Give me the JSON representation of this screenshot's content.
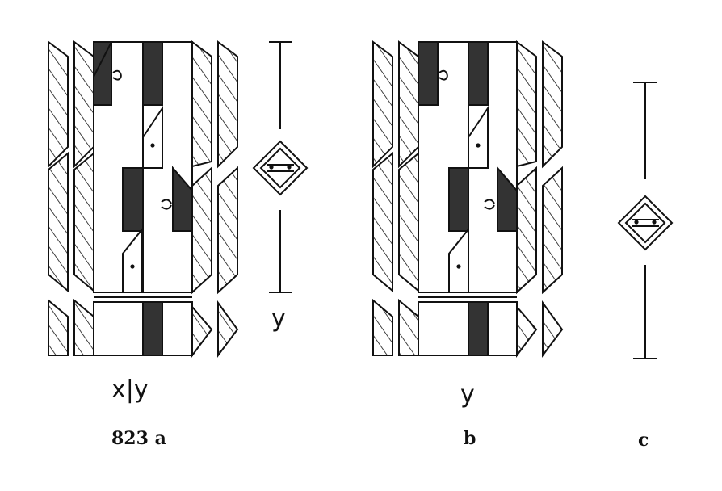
{
  "figure": {
    "caption_a": "823 a",
    "caption_b": "b",
    "caption_c": "c",
    "label_a_bottom": "x|y",
    "label_a_scale": "y",
    "label_b_bottom": "y"
  },
  "colors": {
    "ink": "#111111",
    "fill": "#333333",
    "paper": "#ffffff"
  }
}
